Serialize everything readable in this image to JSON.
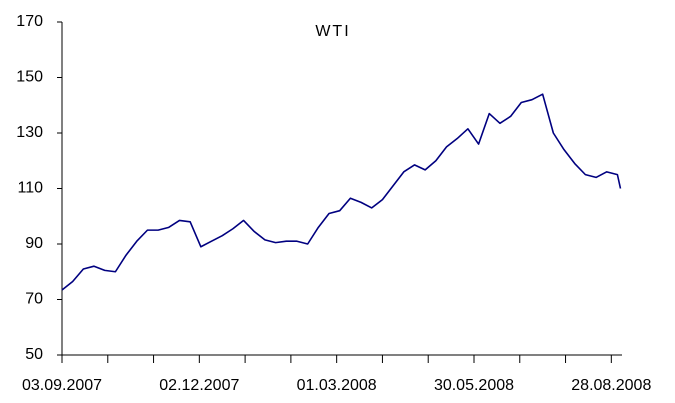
{
  "chart_data": {
    "type": "line",
    "title": "WTI",
    "x": [
      "03.09.2007",
      "10.09.2007",
      "17.09.2007",
      "24.09.2007",
      "01.10.2007",
      "08.10.2007",
      "15.10.2007",
      "22.10.2007",
      "29.10.2007",
      "05.11.2007",
      "12.11.2007",
      "19.11.2007",
      "26.11.2007",
      "03.12.2007",
      "10.12.2007",
      "17.12.2007",
      "24.12.2007",
      "31.12.2007",
      "07.01.2008",
      "14.01.2008",
      "21.01.2008",
      "28.01.2008",
      "04.02.2008",
      "11.02.2008",
      "18.02.2008",
      "25.02.2008",
      "03.03.2008",
      "10.03.2008",
      "17.03.2008",
      "24.03.2008",
      "31.03.2008",
      "07.04.2008",
      "14.04.2008",
      "21.04.2008",
      "28.04.2008",
      "05.05.2008",
      "12.05.2008",
      "19.05.2008",
      "26.05.2008",
      "02.06.2008",
      "09.06.2008",
      "16.06.2008",
      "23.06.2008",
      "30.06.2008",
      "07.07.2008",
      "14.07.2008",
      "21.07.2008",
      "28.07.2008",
      "04.08.2008",
      "11.08.2008",
      "18.08.2008",
      "25.08.2008",
      "01.09.2008",
      "03.09.2008"
    ],
    "series": [
      {
        "name": "WTI",
        "color": "#000080",
        "values": [
          73.4,
          76.5,
          81,
          82,
          80.5,
          80,
          86,
          91,
          95,
          95,
          96,
          98.5,
          98,
          89,
          91,
          93,
          95.5,
          98.5,
          94.5,
          91.5,
          90.5,
          91,
          91,
          90,
          96,
          101,
          102,
          106.5,
          105,
          103,
          106,
          111,
          116,
          118.5,
          116.7,
          120,
          125,
          128,
          131.5,
          126,
          137,
          133.5,
          136,
          141,
          142,
          144,
          130,
          124,
          119,
          115,
          114,
          116,
          115,
          110
        ]
      }
    ],
    "xlim": [
      "03.09.2007",
      "04.09.2008"
    ],
    "xticks": [
      "03.09.2007",
      "02.12.2007",
      "01.03.2008",
      "30.05.2008",
      "28.08.2008"
    ],
    "xminorticks": [
      "03.10.2007",
      "02.11.2007",
      "01.01.2008",
      "31.01.2008",
      "31.03.2008",
      "30.04.2008",
      "29.06.2008",
      "29.07.2008"
    ],
    "ylim": [
      50,
      170
    ],
    "yticks": [
      50,
      70,
      90,
      110,
      130,
      150,
      170
    ],
    "grid": false
  }
}
